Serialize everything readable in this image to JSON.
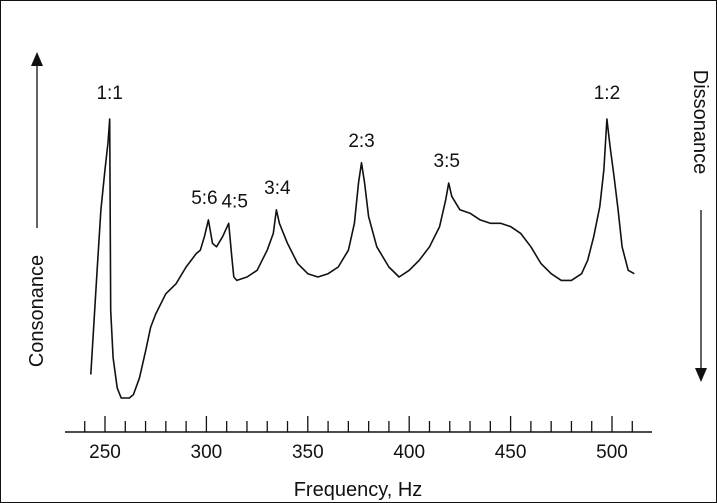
{
  "chart_data": {
    "type": "line",
    "xlabel": "Frequency, Hz",
    "ylabel_left": "Consonance",
    "ylabel_right": "Dissonance",
    "xlim": [
      240,
      515
    ],
    "x_ticks": [
      250,
      300,
      350,
      400,
      450,
      500
    ],
    "x_tick_labels": [
      "250",
      "300",
      "350",
      "400",
      "450",
      "500"
    ],
    "ylim": [
      0,
      100
    ],
    "y_axis_labels": "none",
    "grid": false,
    "series": [
      {
        "points": [
          [
            243,
            7
          ],
          [
            246,
            37
          ],
          [
            248,
            56
          ],
          [
            250,
            68
          ],
          [
            251.5,
            76
          ],
          [
            252.3,
            83
          ],
          [
            252.8,
            26
          ],
          [
            254,
            12
          ],
          [
            256,
            3
          ],
          [
            258,
            0
          ],
          [
            262,
            0
          ],
          [
            264,
            1
          ],
          [
            267,
            6
          ],
          [
            270,
            14
          ],
          [
            272.5,
            21
          ],
          [
            275,
            25
          ],
          [
            280,
            31
          ],
          [
            285,
            34
          ],
          [
            290,
            39
          ],
          [
            295,
            43
          ],
          [
            297,
            44
          ],
          [
            299,
            48
          ],
          [
            301,
            53
          ],
          [
            303,
            46
          ],
          [
            305,
            45
          ],
          [
            308,
            48
          ],
          [
            311,
            52
          ],
          [
            312.5,
            42
          ],
          [
            313.5,
            36
          ],
          [
            315,
            35
          ],
          [
            320,
            36
          ],
          [
            325,
            38
          ],
          [
            330,
            44
          ],
          [
            333,
            49
          ],
          [
            334.5,
            56
          ],
          [
            336,
            52
          ],
          [
            340,
            46
          ],
          [
            345,
            40
          ],
          [
            350,
            37
          ],
          [
            355,
            36
          ],
          [
            360,
            37
          ],
          [
            365,
            39
          ],
          [
            370,
            44
          ],
          [
            373,
            52
          ],
          [
            375,
            64
          ],
          [
            376.5,
            70
          ],
          [
            378,
            64
          ],
          [
            380,
            54
          ],
          [
            384,
            45
          ],
          [
            390,
            39
          ],
          [
            395,
            36
          ],
          [
            400,
            38
          ],
          [
            405,
            41
          ],
          [
            410,
            45
          ],
          [
            415,
            51
          ],
          [
            418,
            59
          ],
          [
            419.5,
            64
          ],
          [
            421,
            60
          ],
          [
            425,
            56
          ],
          [
            430,
            55
          ],
          [
            435,
            53
          ],
          [
            440,
            52
          ],
          [
            445,
            52
          ],
          [
            450,
            51
          ],
          [
            455,
            49
          ],
          [
            460,
            45
          ],
          [
            465,
            40
          ],
          [
            470,
            37
          ],
          [
            475,
            35
          ],
          [
            480,
            35
          ],
          [
            485,
            37
          ],
          [
            488,
            41
          ],
          [
            491,
            48
          ],
          [
            494,
            57
          ],
          [
            496,
            68
          ],
          [
            497.5,
            83
          ],
          [
            499,
            75
          ],
          [
            501,
            66
          ],
          [
            503,
            56
          ],
          [
            505,
            45
          ],
          [
            508,
            38
          ],
          [
            511,
            37
          ]
        ]
      }
    ],
    "annotations": [
      {
        "text": "1:1",
        "x": 252.3,
        "y": 83
      },
      {
        "text": "5:6",
        "x": 301,
        "y": 53
      },
      {
        "text": "4:5",
        "x": 311,
        "y": 52
      },
      {
        "text": "3:4",
        "x": 334.5,
        "y": 56
      },
      {
        "text": "2:3",
        "x": 376.5,
        "y": 70
      },
      {
        "text": "3:5",
        "x": 419.5,
        "y": 64
      },
      {
        "text": "1:2",
        "x": 497.5,
        "y": 83
      }
    ]
  }
}
